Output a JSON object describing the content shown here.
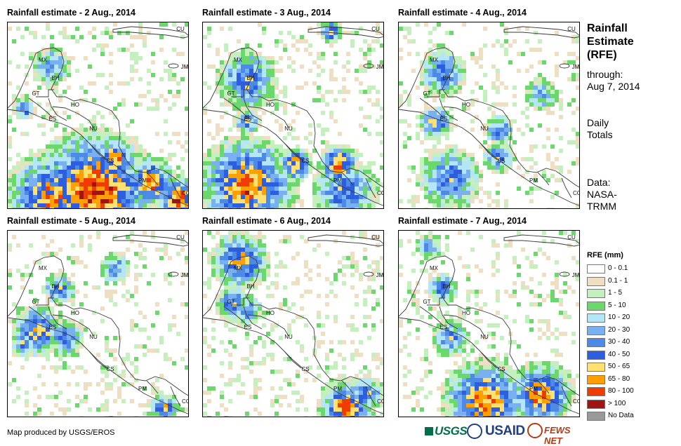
{
  "panels": [
    {
      "title": "Rainfall estimate - 2 Aug., 2014"
    },
    {
      "title": "Rainfall estimate - 3 Aug., 2014"
    },
    {
      "title": "Rainfall estimate - 4 Aug., 2014"
    },
    {
      "title": "Rainfall estimate - 5 Aug., 2014"
    },
    {
      "title": "Rainfall estimate - 6 Aug., 2014"
    },
    {
      "title": "Rainfall estimate - 7 Aug., 2014"
    }
  ],
  "map_labels": [
    "CU",
    "JM",
    "MX",
    "BH",
    "GT",
    "HO",
    "ES",
    "NU",
    "CS",
    "PM",
    "CO"
  ],
  "sidebar": {
    "title_lines": [
      "Rainfall",
      "Estimate",
      "(RFE)"
    ],
    "through_lines": [
      "through:",
      "Aug 7, 2014"
    ],
    "totals_lines": [
      "Daily",
      "Totals"
    ],
    "data_lines": [
      "Data:",
      "NASA-",
      "TRMM"
    ]
  },
  "legend": {
    "title": "RFE (mm)",
    "items": [
      {
        "label": "0 - 0.1",
        "color": "#ffffff"
      },
      {
        "label": "0.1 - 1",
        "color": "#eedec2"
      },
      {
        "label": "1 - 5",
        "color": "#c3f0bc"
      },
      {
        "label": "5 - 10",
        "color": "#6ad86a"
      },
      {
        "label": "10 - 20",
        "color": "#b4e6f5"
      },
      {
        "label": "20 - 30",
        "color": "#78b0f0"
      },
      {
        "label": "30 - 40",
        "color": "#4b8ae6"
      },
      {
        "label": "40 - 50",
        "color": "#2d5ee0"
      },
      {
        "label": "50 - 65",
        "color": "#ffe070"
      },
      {
        "label": "65 - 80",
        "color": "#ffa000"
      },
      {
        "label": "80 - 100",
        "color": "#f03c00"
      },
      {
        "label": "> 100",
        "color": "#a01414"
      },
      {
        "label": "No Data",
        "color": "#999999"
      }
    ]
  },
  "footer": {
    "credit": "Map produced by USGS/EROS",
    "logos": [
      "USGS",
      "USAID",
      "FEWS NET"
    ]
  }
}
